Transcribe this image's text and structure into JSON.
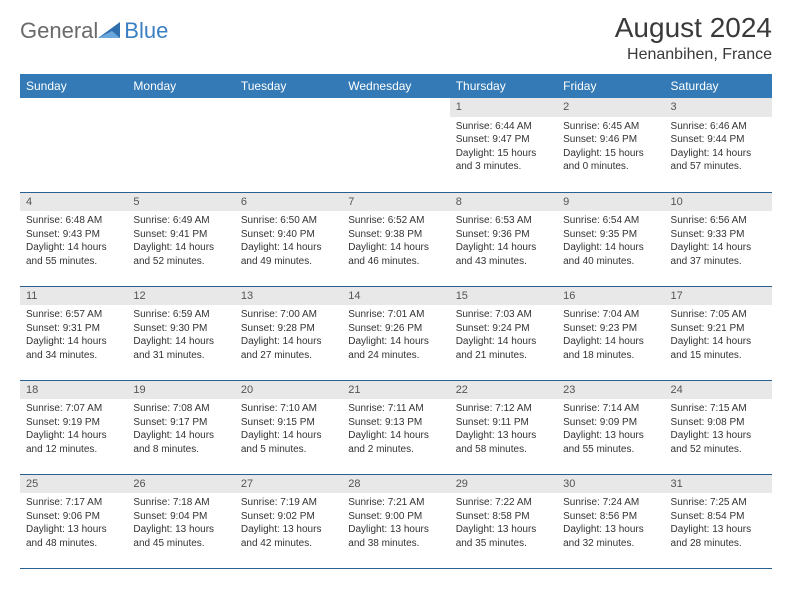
{
  "logo": {
    "text1": "General",
    "text2": "Blue"
  },
  "title": "August 2024",
  "location": "Henanbihen, France",
  "colors": {
    "header_bg": "#337ab7",
    "header_fg": "#ffffff",
    "daynum_bg": "#e8e8e8",
    "row_divider": "#2b5f8e",
    "logo_gray": "#6a6a6a",
    "logo_blue": "#3a7fc2",
    "title_color": "#3a3a3a",
    "body_text": "#333333"
  },
  "weekdays": [
    "Sunday",
    "Monday",
    "Tuesday",
    "Wednesday",
    "Thursday",
    "Friday",
    "Saturday"
  ],
  "days": [
    {
      "n": "",
      "sr": "",
      "ss": "",
      "dl": ""
    },
    {
      "n": "",
      "sr": "",
      "ss": "",
      "dl": ""
    },
    {
      "n": "",
      "sr": "",
      "ss": "",
      "dl": ""
    },
    {
      "n": "",
      "sr": "",
      "ss": "",
      "dl": ""
    },
    {
      "n": "1",
      "sr": "Sunrise: 6:44 AM",
      "ss": "Sunset: 9:47 PM",
      "dl": "Daylight: 15 hours and 3 minutes."
    },
    {
      "n": "2",
      "sr": "Sunrise: 6:45 AM",
      "ss": "Sunset: 9:46 PM",
      "dl": "Daylight: 15 hours and 0 minutes."
    },
    {
      "n": "3",
      "sr": "Sunrise: 6:46 AM",
      "ss": "Sunset: 9:44 PM",
      "dl": "Daylight: 14 hours and 57 minutes."
    },
    {
      "n": "4",
      "sr": "Sunrise: 6:48 AM",
      "ss": "Sunset: 9:43 PM",
      "dl": "Daylight: 14 hours and 55 minutes."
    },
    {
      "n": "5",
      "sr": "Sunrise: 6:49 AM",
      "ss": "Sunset: 9:41 PM",
      "dl": "Daylight: 14 hours and 52 minutes."
    },
    {
      "n": "6",
      "sr": "Sunrise: 6:50 AM",
      "ss": "Sunset: 9:40 PM",
      "dl": "Daylight: 14 hours and 49 minutes."
    },
    {
      "n": "7",
      "sr": "Sunrise: 6:52 AM",
      "ss": "Sunset: 9:38 PM",
      "dl": "Daylight: 14 hours and 46 minutes."
    },
    {
      "n": "8",
      "sr": "Sunrise: 6:53 AM",
      "ss": "Sunset: 9:36 PM",
      "dl": "Daylight: 14 hours and 43 minutes."
    },
    {
      "n": "9",
      "sr": "Sunrise: 6:54 AM",
      "ss": "Sunset: 9:35 PM",
      "dl": "Daylight: 14 hours and 40 minutes."
    },
    {
      "n": "10",
      "sr": "Sunrise: 6:56 AM",
      "ss": "Sunset: 9:33 PM",
      "dl": "Daylight: 14 hours and 37 minutes."
    },
    {
      "n": "11",
      "sr": "Sunrise: 6:57 AM",
      "ss": "Sunset: 9:31 PM",
      "dl": "Daylight: 14 hours and 34 minutes."
    },
    {
      "n": "12",
      "sr": "Sunrise: 6:59 AM",
      "ss": "Sunset: 9:30 PM",
      "dl": "Daylight: 14 hours and 31 minutes."
    },
    {
      "n": "13",
      "sr": "Sunrise: 7:00 AM",
      "ss": "Sunset: 9:28 PM",
      "dl": "Daylight: 14 hours and 27 minutes."
    },
    {
      "n": "14",
      "sr": "Sunrise: 7:01 AM",
      "ss": "Sunset: 9:26 PM",
      "dl": "Daylight: 14 hours and 24 minutes."
    },
    {
      "n": "15",
      "sr": "Sunrise: 7:03 AM",
      "ss": "Sunset: 9:24 PM",
      "dl": "Daylight: 14 hours and 21 minutes."
    },
    {
      "n": "16",
      "sr": "Sunrise: 7:04 AM",
      "ss": "Sunset: 9:23 PM",
      "dl": "Daylight: 14 hours and 18 minutes."
    },
    {
      "n": "17",
      "sr": "Sunrise: 7:05 AM",
      "ss": "Sunset: 9:21 PM",
      "dl": "Daylight: 14 hours and 15 minutes."
    },
    {
      "n": "18",
      "sr": "Sunrise: 7:07 AM",
      "ss": "Sunset: 9:19 PM",
      "dl": "Daylight: 14 hours and 12 minutes."
    },
    {
      "n": "19",
      "sr": "Sunrise: 7:08 AM",
      "ss": "Sunset: 9:17 PM",
      "dl": "Daylight: 14 hours and 8 minutes."
    },
    {
      "n": "20",
      "sr": "Sunrise: 7:10 AM",
      "ss": "Sunset: 9:15 PM",
      "dl": "Daylight: 14 hours and 5 minutes."
    },
    {
      "n": "21",
      "sr": "Sunrise: 7:11 AM",
      "ss": "Sunset: 9:13 PM",
      "dl": "Daylight: 14 hours and 2 minutes."
    },
    {
      "n": "22",
      "sr": "Sunrise: 7:12 AM",
      "ss": "Sunset: 9:11 PM",
      "dl": "Daylight: 13 hours and 58 minutes."
    },
    {
      "n": "23",
      "sr": "Sunrise: 7:14 AM",
      "ss": "Sunset: 9:09 PM",
      "dl": "Daylight: 13 hours and 55 minutes."
    },
    {
      "n": "24",
      "sr": "Sunrise: 7:15 AM",
      "ss": "Sunset: 9:08 PM",
      "dl": "Daylight: 13 hours and 52 minutes."
    },
    {
      "n": "25",
      "sr": "Sunrise: 7:17 AM",
      "ss": "Sunset: 9:06 PM",
      "dl": "Daylight: 13 hours and 48 minutes."
    },
    {
      "n": "26",
      "sr": "Sunrise: 7:18 AM",
      "ss": "Sunset: 9:04 PM",
      "dl": "Daylight: 13 hours and 45 minutes."
    },
    {
      "n": "27",
      "sr": "Sunrise: 7:19 AM",
      "ss": "Sunset: 9:02 PM",
      "dl": "Daylight: 13 hours and 42 minutes."
    },
    {
      "n": "28",
      "sr": "Sunrise: 7:21 AM",
      "ss": "Sunset: 9:00 PM",
      "dl": "Daylight: 13 hours and 38 minutes."
    },
    {
      "n": "29",
      "sr": "Sunrise: 7:22 AM",
      "ss": "Sunset: 8:58 PM",
      "dl": "Daylight: 13 hours and 35 minutes."
    },
    {
      "n": "30",
      "sr": "Sunrise: 7:24 AM",
      "ss": "Sunset: 8:56 PM",
      "dl": "Daylight: 13 hours and 32 minutes."
    },
    {
      "n": "31",
      "sr": "Sunrise: 7:25 AM",
      "ss": "Sunset: 8:54 PM",
      "dl": "Daylight: 13 hours and 28 minutes."
    }
  ]
}
